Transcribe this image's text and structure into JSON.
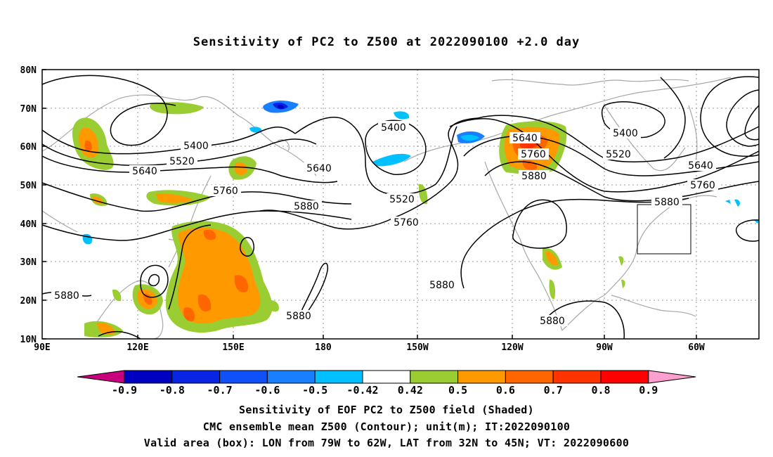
{
  "title": "Sensitivity of PC2 to Z500 at 2022090100 +2.0 day",
  "lat_labels": [
    "80N",
    "70N",
    "60N",
    "50N",
    "40N",
    "30N",
    "20N",
    "10N"
  ],
  "lon_labels": [
    "90E",
    "120E",
    "150E",
    "180",
    "150W",
    "120W",
    "90W",
    "60W"
  ],
  "contour_labels": [
    "5400",
    "5520",
    "5640",
    "5760",
    "5880"
  ],
  "colorbar": {
    "labels": [
      "-0.9",
      "-0.8",
      "-0.7",
      "-0.6",
      "-0.5",
      "-0.42",
      "0.42",
      "0.5",
      "0.6",
      "0.7",
      "0.8",
      "0.9"
    ],
    "colors": [
      "#c8007e",
      "#0000c0",
      "#0a24e6",
      "#1050f8",
      "#1880ff",
      "#00c0ff",
      "#ffffff",
      "#9acd32",
      "#ff9900",
      "#ff6600",
      "#ff3300",
      "#ff0000",
      "#ff9fcf"
    ]
  },
  "footer": {
    "line1": "Sensitivity of EOF PC2 to Z500 field (Shaded)",
    "line2": "CMC ensemble mean Z500 (Contour); unit(m); IT:2022090100",
    "line3": "Valid area (box): LON from 79W to 62W, LAT from 32N to 45N; VT: 2022090600"
  }
}
